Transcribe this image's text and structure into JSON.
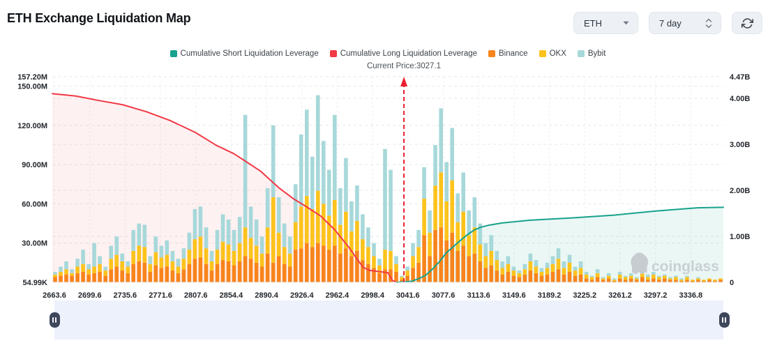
{
  "header": {
    "title": "ETH Exchange Liquidation Map",
    "symbol_value": "ETH",
    "period_value": "7 day"
  },
  "legend": [
    {
      "label": "Cumulative Short Liquidation Leverage",
      "color": "#17a28c"
    },
    {
      "label": "Cumulative Long Liquidation Leverage",
      "color": "#f23946"
    },
    {
      "label": "Binance",
      "color": "#f8841c"
    },
    {
      "label": "OKX",
      "color": "#fdc31c"
    },
    {
      "label": "Bybit",
      "color": "#a7d8da"
    }
  ],
  "current_price_label": "Current Price:3027.1",
  "watermark": "coinglass",
  "colors": {
    "long_line": "#f23946",
    "short_line": "#17a28c",
    "price_line": "#ea1e30",
    "binance": "#f8841c",
    "okx": "#fdc31c",
    "bybit": "#a7d8da",
    "grid": "#e7e7e7",
    "vgrid": "#efefef"
  },
  "chart_data": {
    "type": "bar",
    "title": "ETH Exchange Liquidation Map",
    "legend_position": "top",
    "grid": "dashed",
    "current_price": 3027.1,
    "current_price_pos": 0.524,
    "x_tick_labels": [
      "2663.6",
      "2699.6",
      "2735.6",
      "2771.6",
      "2807.6",
      "2854.4",
      "2890.4",
      "2926.4",
      "2962.4",
      "2998.4",
      "3041.6",
      "3077.6",
      "3113.6",
      "3149.6",
      "3189.2",
      "3225.2",
      "3261.2",
      "3297.2",
      "3336.8"
    ],
    "left_axis": {
      "unit": "M",
      "max": 157.2,
      "ticks": [
        [
          "157.20M",
          157.2
        ],
        [
          "150.00M",
          150
        ],
        [
          "120.00M",
          120
        ],
        [
          "90.00M",
          90
        ],
        [
          "60.00M",
          60
        ],
        [
          "30.00M",
          30
        ],
        [
          "54.99K",
          0.055
        ]
      ]
    },
    "right_axis": {
      "unit": "B",
      "max": 4.47,
      "ticks": [
        [
          "4.47B",
          4.47
        ],
        [
          "4.00B",
          4
        ],
        [
          "3.00B",
          3
        ],
        [
          "2.00B",
          2
        ],
        [
          "1.00B",
          1
        ],
        [
          "0",
          0
        ]
      ]
    },
    "bar_series": [
      "Binance",
      "OKX",
      "Bybit"
    ],
    "bars_m": [
      [
        4,
        2,
        2
      ],
      [
        5,
        3,
        4
      ],
      [
        6,
        4,
        6
      ],
      [
        5,
        2,
        3
      ],
      [
        7,
        5,
        6
      ],
      [
        8,
        6,
        11
      ],
      [
        6,
        4,
        4
      ],
      [
        7,
        5,
        18
      ],
      [
        8,
        6,
        6
      ],
      [
        5,
        4,
        3
      ],
      [
        10,
        8,
        10
      ],
      [
        12,
        9,
        14
      ],
      [
        9,
        7,
        6
      ],
      [
        7,
        5,
        4
      ],
      [
        14,
        10,
        16
      ],
      [
        16,
        12,
        17
      ],
      [
        15,
        12,
        17
      ],
      [
        8,
        6,
        6
      ],
      [
        13,
        10,
        12
      ],
      [
        11,
        8,
        9
      ],
      [
        12,
        9,
        11
      ],
      [
        9,
        7,
        8
      ],
      [
        7,
        5,
        6
      ],
      [
        10,
        8,
        8
      ],
      [
        14,
        11,
        13
      ],
      [
        18,
        15,
        23
      ],
      [
        19,
        16,
        23
      ],
      [
        14,
        12,
        16
      ],
      [
        9,
        7,
        8
      ],
      [
        14,
        11,
        15
      ],
      [
        17,
        14,
        21
      ],
      [
        16,
        13,
        19
      ],
      [
        13,
        11,
        16
      ],
      [
        16,
        14,
        20
      ],
      [
        20,
        22,
        86
      ],
      [
        18,
        16,
        24
      ],
      [
        15,
        13,
        20
      ],
      [
        12,
        10,
        13
      ],
      [
        22,
        20,
        30
      ],
      [
        15,
        50,
        55
      ],
      [
        20,
        18,
        27
      ],
      [
        14,
        13,
        18
      ],
      [
        12,
        10,
        13
      ],
      [
        25,
        21,
        29
      ],
      [
        26,
        32,
        55
      ],
      [
        30,
        36,
        66
      ],
      [
        27,
        29,
        40
      ],
      [
        30,
        40,
        73
      ],
      [
        28,
        32,
        48
      ],
      [
        25,
        26,
        35
      ],
      [
        28,
        35,
        65
      ],
      [
        22,
        22,
        28
      ],
      [
        26,
        28,
        41
      ],
      [
        20,
        19,
        23
      ],
      [
        24,
        23,
        27
      ],
      [
        17,
        16,
        19
      ],
      [
        14,
        13,
        15
      ],
      [
        11,
        9,
        10
      ],
      [
        7,
        6,
        5
      ],
      [
        10,
        15,
        77
      ],
      [
        10,
        14,
        62
      ],
      [
        8,
        6,
        6
      ],
      [
        2,
        2,
        1
      ],
      [
        5,
        4,
        3
      ],
      [
        11,
        9,
        10
      ],
      [
        15,
        12,
        13
      ],
      [
        36,
        28,
        24
      ],
      [
        20,
        18,
        17
      ],
      [
        40,
        34,
        31
      ],
      [
        42,
        42,
        49
      ],
      [
        32,
        30,
        30
      ],
      [
        38,
        40,
        40
      ],
      [
        24,
        22,
        22
      ],
      [
        28,
        26,
        30
      ],
      [
        20,
        16,
        19
      ],
      [
        22,
        20,
        23
      ],
      [
        16,
        13,
        16
      ],
      [
        11,
        9,
        10
      ],
      [
        13,
        11,
        12
      ],
      [
        9,
        8,
        7
      ],
      [
        6,
        5,
        5
      ],
      [
        8,
        6,
        6
      ],
      [
        5,
        4,
        3
      ],
      [
        4,
        3,
        2
      ],
      [
        6,
        4,
        4
      ],
      [
        9,
        7,
        6
      ],
      [
        7,
        5,
        5
      ],
      [
        5,
        3,
        3
      ],
      [
        6,
        5,
        4
      ],
      [
        8,
        6,
        6
      ],
      [
        10,
        8,
        8
      ],
      [
        6,
        5,
        5
      ],
      [
        8,
        7,
        6
      ],
      [
        5,
        4,
        3
      ],
      [
        6,
        5,
        5
      ],
      [
        3,
        3,
        2
      ],
      [
        2,
        2,
        1
      ],
      [
        4,
        3,
        3
      ],
      [
        2,
        1,
        1
      ],
      [
        3,
        2,
        2
      ],
      [
        1,
        1,
        1
      ],
      [
        3,
        3,
        2
      ],
      [
        2,
        2,
        1
      ],
      [
        3,
        2,
        2
      ],
      [
        2,
        1,
        1
      ],
      [
        4,
        3,
        2
      ],
      [
        2,
        2,
        2
      ],
      [
        3,
        3,
        2
      ],
      [
        2,
        2,
        1
      ],
      [
        3,
        2,
        1
      ],
      [
        2,
        1,
        1
      ],
      [
        2,
        2,
        1
      ],
      [
        1,
        1,
        1
      ],
      [
        2,
        2,
        1
      ],
      [
        1,
        1,
        0
      ],
      [
        2,
        1,
        1
      ],
      [
        1,
        1,
        0
      ],
      [
        2,
        1,
        0
      ],
      [
        1,
        1,
        0
      ],
      [
        2,
        1,
        0
      ]
    ],
    "cumulative_long_b": [
      [
        0,
        4.1
      ],
      [
        0.035,
        4.05
      ],
      [
        0.07,
        3.95
      ],
      [
        0.105,
        3.86
      ],
      [
        0.14,
        3.71
      ],
      [
        0.175,
        3.52
      ],
      [
        0.213,
        3.26
      ],
      [
        0.244,
        2.98
      ],
      [
        0.27,
        2.8
      ],
      [
        0.286,
        2.65
      ],
      [
        0.31,
        2.42
      ],
      [
        0.338,
        2.05
      ],
      [
        0.359,
        1.82
      ],
      [
        0.379,
        1.64
      ],
      [
        0.4,
        1.44
      ],
      [
        0.421,
        1.14
      ],
      [
        0.442,
        0.76
      ],
      [
        0.452,
        0.55
      ],
      [
        0.463,
        0.33
      ],
      [
        0.473,
        0.26
      ],
      [
        0.489,
        0.23
      ],
      [
        0.5,
        0.21
      ],
      [
        0.507,
        0.04
      ],
      [
        0.513,
        0
      ]
    ],
    "cumulative_short_b": [
      [
        0.513,
        0
      ],
      [
        0.535,
        0.02
      ],
      [
        0.546,
        0.08
      ],
      [
        0.556,
        0.15
      ],
      [
        0.566,
        0.28
      ],
      [
        0.577,
        0.45
      ],
      [
        0.587,
        0.64
      ],
      [
        0.598,
        0.78
      ],
      [
        0.608,
        0.91
      ],
      [
        0.619,
        1.04
      ],
      [
        0.629,
        1.14
      ],
      [
        0.639,
        1.2
      ],
      [
        0.65,
        1.24
      ],
      [
        0.67,
        1.29
      ],
      [
        0.712,
        1.35
      ],
      [
        0.774,
        1.4
      ],
      [
        0.837,
        1.46
      ],
      [
        0.899,
        1.55
      ],
      [
        0.961,
        1.62
      ],
      [
        1,
        1.63
      ]
    ]
  }
}
